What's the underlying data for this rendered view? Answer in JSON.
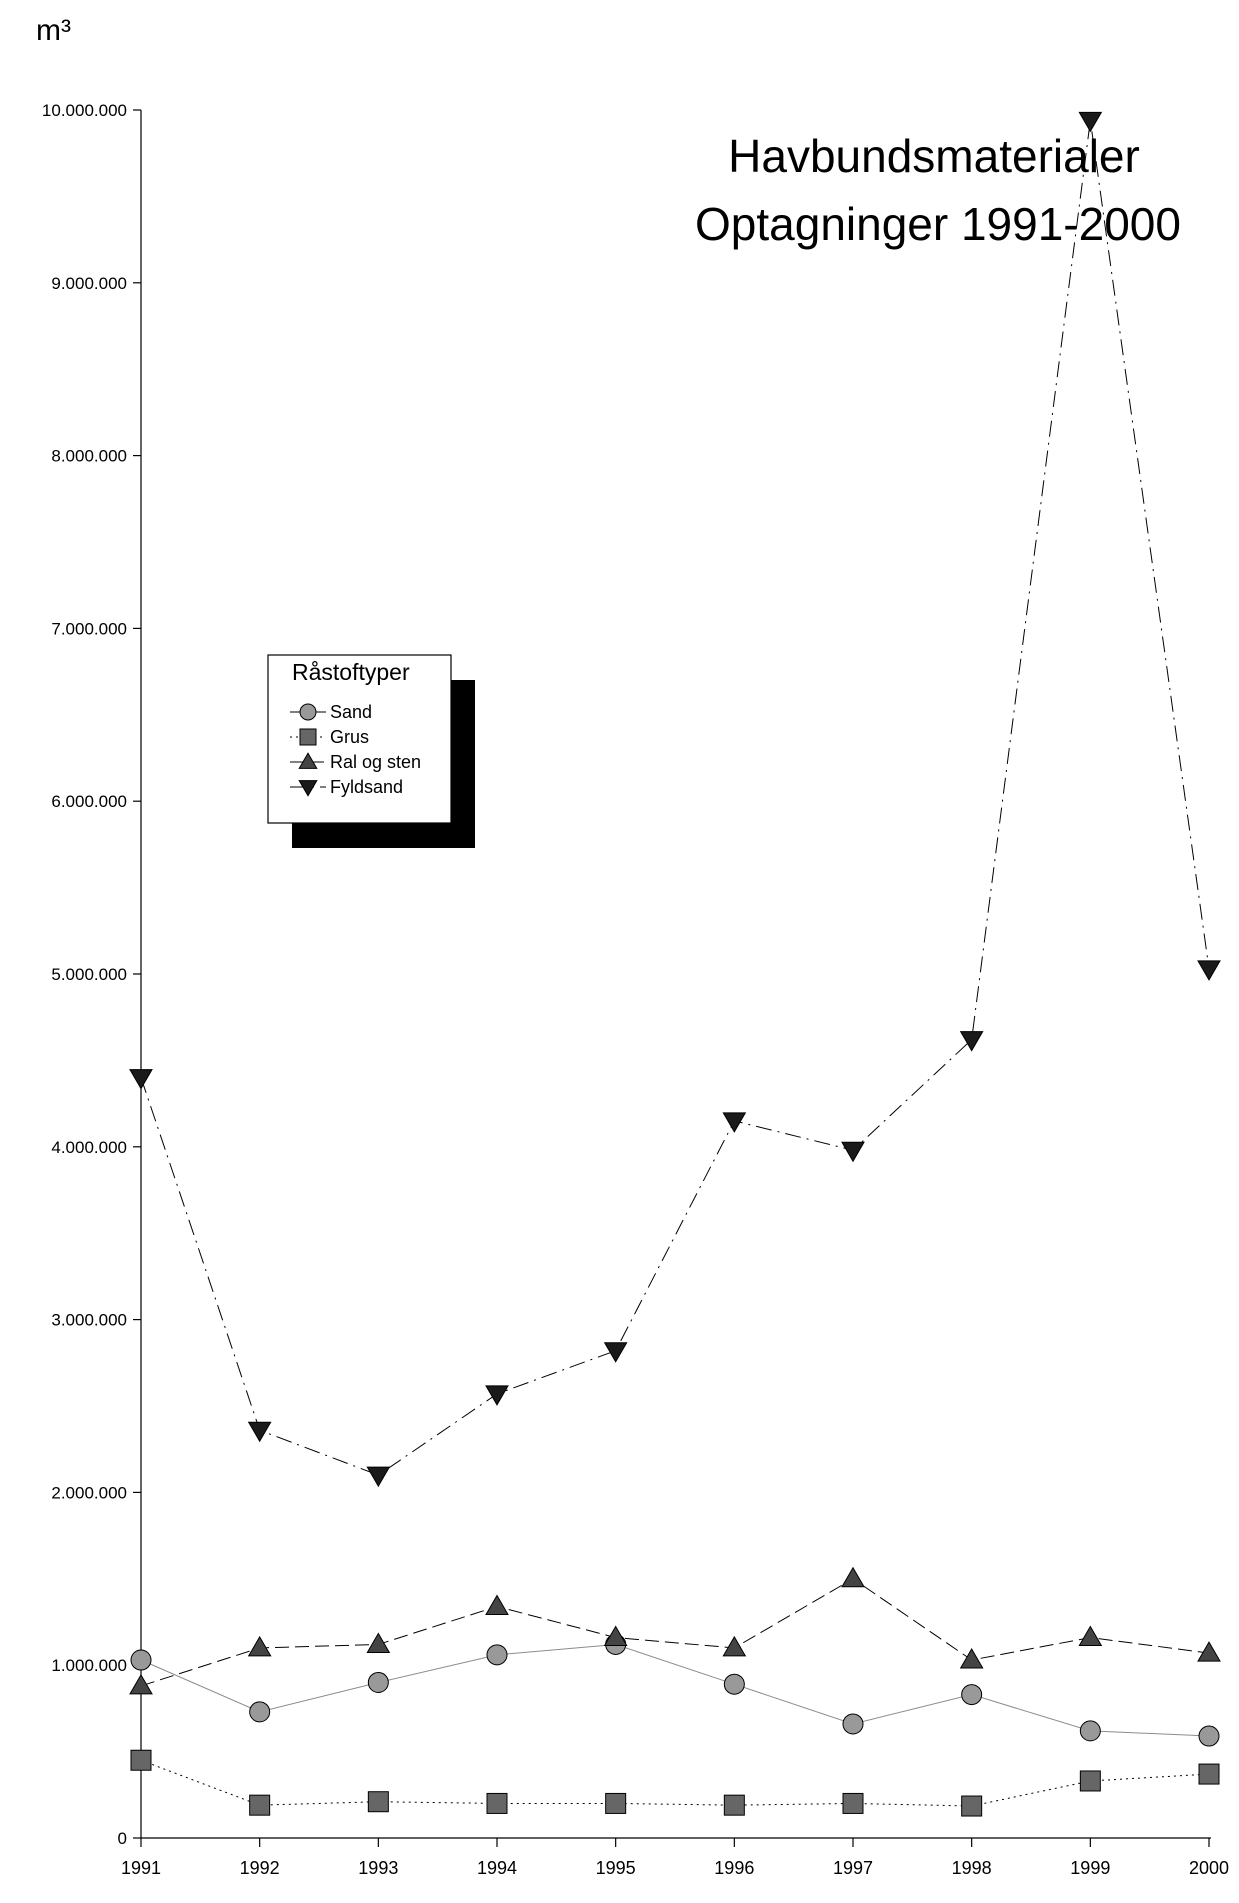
{
  "chart_data": {
    "type": "line",
    "title": [
      "Havbundsmaterialer",
      "Optagninger 1991-2000"
    ],
    "ylabel": "m³",
    "xlabel": "",
    "x": [
      1991,
      1992,
      1993,
      1994,
      1995,
      1996,
      1997,
      1998,
      1999,
      2000
    ],
    "xtick_labels": [
      "1991",
      "1992",
      "1993",
      "1994",
      "1995",
      "1996",
      "1997",
      "1998",
      "1999",
      "2000"
    ],
    "ylim": [
      0,
      10000000
    ],
    "yticks": [
      0,
      1000000,
      2000000,
      3000000,
      4000000,
      5000000,
      6000000,
      7000000,
      8000000,
      9000000,
      10000000
    ],
    "ytick_labels": [
      "0",
      "1.000.000",
      "2.000.000",
      "3.000.000",
      "4.000.000",
      "5.000.000",
      "6.000.000",
      "7.000.000",
      "8.000.000",
      "9.000.000",
      "10.000.000"
    ],
    "grid": false,
    "legend": {
      "title": "Råstoftyper",
      "placement": "center-left"
    },
    "series": [
      {
        "name": "Sand",
        "marker": "circle",
        "line_style": "solid",
        "color": "#999999",
        "values": [
          1030000,
          730000,
          900000,
          1060000,
          1120000,
          890000,
          660000,
          830000,
          620000,
          590000
        ]
      },
      {
        "name": "Grus",
        "marker": "square",
        "line_style": "dotted",
        "color": "#666666",
        "values": [
          450000,
          190000,
          210000,
          200000,
          200000,
          190000,
          200000,
          185000,
          330000,
          370000
        ]
      },
      {
        "name": "Ral og sten",
        "marker": "triangle-up",
        "line_style": "dashed",
        "color": "#444444",
        "values": [
          880000,
          1100000,
          1120000,
          1340000,
          1160000,
          1100000,
          1500000,
          1030000,
          1160000,
          1070000
        ]
      },
      {
        "name": "Fyldsand",
        "marker": "triangle-down",
        "line_style": "dash-dot",
        "color": "#1a1a1a",
        "values": [
          4400000,
          2360000,
          2100000,
          2570000,
          2820000,
          4150000,
          3980000,
          4620000,
          9940000,
          5030000
        ]
      }
    ]
  }
}
